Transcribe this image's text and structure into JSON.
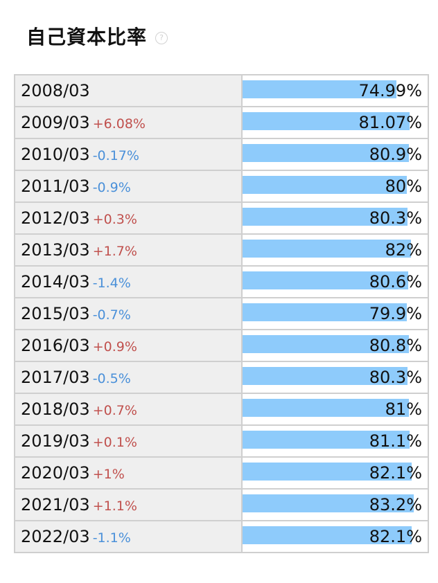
{
  "title": "自己資本比率",
  "help_icon": "question-circle-icon",
  "colors": {
    "bar": "#8ecbfb",
    "increase": "#c0504d",
    "decrease": "#4a90d9"
  },
  "bar_scale_max": 90,
  "rows": [
    {
      "year": "2008/03",
      "change": "",
      "direction": "",
      "value": 74.99,
      "value_label": "74.99%"
    },
    {
      "year": "2009/03",
      "change": "+6.08%",
      "direction": "up",
      "value": 81.07,
      "value_label": "81.07%"
    },
    {
      "year": "2010/03",
      "change": "-0.17%",
      "direction": "down",
      "value": 80.9,
      "value_label": "80.9%"
    },
    {
      "year": "2011/03",
      "change": "-0.9%",
      "direction": "down",
      "value": 80,
      "value_label": "80%"
    },
    {
      "year": "2012/03",
      "change": "+0.3%",
      "direction": "up",
      "value": 80.3,
      "value_label": "80.3%"
    },
    {
      "year": "2013/03",
      "change": "+1.7%",
      "direction": "up",
      "value": 82,
      "value_label": "82%"
    },
    {
      "year": "2014/03",
      "change": "-1.4%",
      "direction": "down",
      "value": 80.6,
      "value_label": "80.6%"
    },
    {
      "year": "2015/03",
      "change": "-0.7%",
      "direction": "down",
      "value": 79.9,
      "value_label": "79.9%"
    },
    {
      "year": "2016/03",
      "change": "+0.9%",
      "direction": "up",
      "value": 80.8,
      "value_label": "80.8%"
    },
    {
      "year": "2017/03",
      "change": "-0.5%",
      "direction": "down",
      "value": 80.3,
      "value_label": "80.3%"
    },
    {
      "year": "2018/03",
      "change": "+0.7%",
      "direction": "up",
      "value": 81,
      "value_label": "81%"
    },
    {
      "year": "2019/03",
      "change": "+0.1%",
      "direction": "up",
      "value": 81.1,
      "value_label": "81.1%"
    },
    {
      "year": "2020/03",
      "change": "+1%",
      "direction": "up",
      "value": 82.1,
      "value_label": "82.1%"
    },
    {
      "year": "2021/03",
      "change": "+1.1%",
      "direction": "up",
      "value": 83.2,
      "value_label": "83.2%"
    },
    {
      "year": "2022/03",
      "change": "-1.1%",
      "direction": "down",
      "value": 82.1,
      "value_label": "82.1%"
    }
  ]
}
